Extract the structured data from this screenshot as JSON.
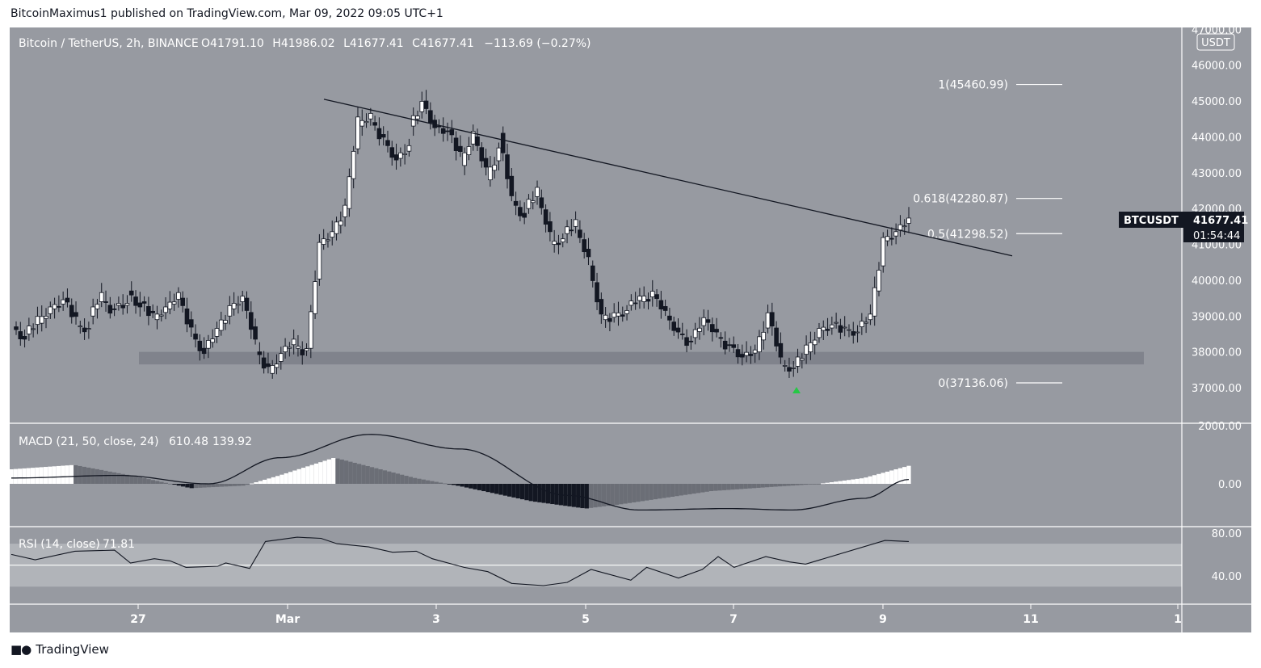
{
  "header": {
    "published": "BitcoinMaximus1 published on TradingView.com, Mar 09, 2022 09:05 UTC+1"
  },
  "footer": {
    "brand": "TradingView"
  },
  "colors": {
    "panel": "#979aa1",
    "axis_bg": "#979aa1",
    "border": "#ffffff",
    "up": "#ffffff",
    "down": "#131722",
    "signal": "#26c845",
    "support_zone": "#787b86",
    "rsi_band": "#b8babf"
  },
  "chart_data": {
    "type": "candlestick",
    "symbol_line": {
      "name": "Bitcoin / TetherUS, 2h, BINANCE",
      "open_label": "O",
      "open": "41791.10",
      "high_label": "H",
      "high": "41986.02",
      "low_label": "L",
      "low": "41677.41",
      "close_label": "C",
      "close": "41677.41",
      "change": "−113.69 (−0.27%)"
    },
    "currency_label": "USDT",
    "price_axis": {
      "ticks": [
        "47000.00",
        "46000.00",
        "45000.00",
        "44000.00",
        "43000.00",
        "42000.00",
        "41000.00",
        "40000.00",
        "39000.00",
        "38000.00",
        "37000.00"
      ],
      "range": [
        36000,
        47000
      ]
    },
    "time_axis": {
      "ticks": [
        "27",
        "Mar",
        "3",
        "5",
        "7",
        "9",
        "11",
        "1"
      ]
    },
    "last_price": {
      "symbol": "BTCUSDT",
      "price": "41677.41",
      "countdown": "01:54:44"
    },
    "fib_levels": [
      {
        "label": "1(45460.99)",
        "value": 45460.99
      },
      {
        "label": "0.618(42280.87)",
        "value": 42280.87
      },
      {
        "label": "0.5(41298.52)",
        "value": 41298.52
      },
      {
        "label": "0(37136.06)",
        "value": 37136.06
      }
    ],
    "support_zone": {
      "low": 37650,
      "high": 38000
    },
    "trendline": {
      "start": {
        "date": "Mar 1",
        "price": 45050
      },
      "end": {
        "date": "Mar 10 14:00",
        "price": 40680
      }
    },
    "signal_marker": {
      "date": "Mar 7 19:00",
      "price": 37136
    },
    "ohlc_path": [
      [
        38700,
        38300
      ],
      [
        38500,
        38900
      ],
      [
        38800,
        39200
      ],
      [
        39200,
        39400
      ],
      [
        39500,
        38900
      ],
      [
        38700,
        38600
      ],
      [
        39000,
        39600
      ],
      [
        39400,
        39100
      ],
      [
        39300,
        39300
      ],
      [
        39700,
        39200
      ],
      [
        39400,
        39000
      ],
      [
        38900,
        39200
      ],
      [
        39200,
        39600
      ],
      [
        39500,
        38600
      ],
      [
        38500,
        37900
      ],
      [
        38100,
        38600
      ],
      [
        38600,
        39200
      ],
      [
        39200,
        39500
      ],
      [
        39500,
        38300
      ],
      [
        38000,
        37500
      ],
      [
        37400,
        37900
      ],
      [
        38000,
        38300
      ],
      [
        38100,
        38000
      ],
      [
        38100,
        41000
      ],
      [
        41000,
        41300
      ],
      [
        41300,
        42000
      ],
      [
        42000,
        44500
      ],
      [
        44300,
        44600
      ],
      [
        44400,
        43900
      ],
      [
        43900,
        43300
      ],
      [
        43400,
        43700
      ],
      [
        44300,
        44900
      ],
      [
        45000,
        44200
      ],
      [
        44300,
        44100
      ],
      [
        44200,
        43500
      ],
      [
        43200,
        44100
      ],
      [
        44000,
        43100
      ],
      [
        42800,
        43600
      ],
      [
        44100,
        42300
      ],
      [
        42200,
        41700
      ],
      [
        42000,
        42500
      ],
      [
        42300,
        41300
      ],
      [
        41000,
        41100
      ],
      [
        41300,
        41600
      ],
      [
        41400,
        40600
      ],
      [
        40400,
        39000
      ],
      [
        38900,
        39000
      ],
      [
        39000,
        39100
      ],
      [
        39300,
        39500
      ],
      [
        39400,
        39600
      ],
      [
        39600,
        39100
      ],
      [
        39000,
        38500
      ],
      [
        38500,
        38200
      ],
      [
        38400,
        38900
      ],
      [
        38900,
        38500
      ],
      [
        38400,
        38100
      ],
      [
        38200,
        37800
      ],
      [
        37900,
        38000
      ],
      [
        38000,
        39000
      ],
      [
        39100,
        37800
      ],
      [
        37600,
        37500
      ],
      [
        37600,
        38100
      ],
      [
        38000,
        38600
      ],
      [
        38600,
        38700
      ],
      [
        38800,
        38600
      ],
      [
        38600,
        38500
      ],
      [
        38700,
        39000
      ],
      [
        39000,
        41100
      ],
      [
        41100,
        41300
      ],
      [
        41400,
        41680
      ]
    ],
    "macd": {
      "title": "MACD (21, 50, close, 24)",
      "macd_value": "610.48",
      "hist_value": "139.92",
      "ticks": [
        "2000.00",
        "0.00"
      ]
    },
    "rsi": {
      "title": "RSI (14, close)",
      "value": "71.81",
      "ticks": [
        "80.00",
        "40.00"
      ],
      "band": [
        30,
        70
      ]
    }
  }
}
